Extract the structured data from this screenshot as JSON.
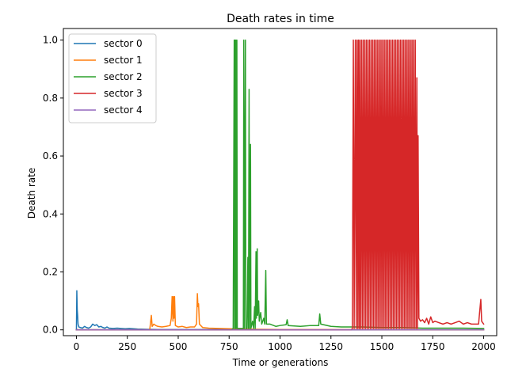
{
  "chart_data": {
    "type": "line",
    "title": "Death rates in time",
    "xlabel": "Time or generations",
    "ylabel": "Death rate",
    "xlim": [
      -64,
      2064
    ],
    "ylim": [
      -0.02,
      1.04
    ],
    "xticks": [
      0,
      250,
      500,
      750,
      1000,
      1250,
      1500,
      1750,
      2000
    ],
    "xtick_labels": [
      "0",
      "250",
      "500",
      "750",
      "1000",
      "1250",
      "1500",
      "1750",
      "2000"
    ],
    "yticks": [
      0.0,
      0.2,
      0.4,
      0.6,
      0.8,
      1.0
    ],
    "ytick_labels": [
      "0.0",
      "0.2",
      "0.4",
      "0.6",
      "0.8",
      "1.0"
    ],
    "grid": false,
    "legend_position": "top-left",
    "series": [
      {
        "name": "sector 0",
        "color": "#1f77b4",
        "points": [
          [
            0,
            0.0
          ],
          [
            2,
            0.135
          ],
          [
            4,
            0.07
          ],
          [
            6,
            0.05
          ],
          [
            8,
            0.02
          ],
          [
            12,
            0.01
          ],
          [
            20,
            0.008
          ],
          [
            30,
            0.006
          ],
          [
            40,
            0.012
          ],
          [
            50,
            0.008
          ],
          [
            60,
            0.006
          ],
          [
            70,
            0.01
          ],
          [
            80,
            0.02
          ],
          [
            90,
            0.015
          ],
          [
            100,
            0.018
          ],
          [
            110,
            0.01
          ],
          [
            120,
            0.012
          ],
          [
            130,
            0.008
          ],
          [
            140,
            0.006
          ],
          [
            150,
            0.01
          ],
          [
            160,
            0.006
          ],
          [
            180,
            0.005
          ],
          [
            200,
            0.006
          ],
          [
            220,
            0.005
          ],
          [
            240,
            0.004
          ],
          [
            260,
            0.005
          ],
          [
            280,
            0.004
          ],
          [
            300,
            0.003
          ],
          [
            350,
            0.002
          ],
          [
            400,
            0.001
          ],
          [
            500,
            0.001
          ],
          [
            700,
            0.001
          ],
          [
            1000,
            0.0
          ],
          [
            2000,
            0.0
          ]
        ]
      },
      {
        "name": "sector 1",
        "color": "#ff7f0e",
        "points": [
          [
            0,
            0.0
          ],
          [
            360,
            0.0
          ],
          [
            368,
            0.05
          ],
          [
            372,
            0.012
          ],
          [
            380,
            0.02
          ],
          [
            390,
            0.015
          ],
          [
            400,
            0.012
          ],
          [
            420,
            0.01
          ],
          [
            440,
            0.012
          ],
          [
            460,
            0.015
          ],
          [
            466,
            0.04
          ],
          [
            470,
            0.115
          ],
          [
            474,
            0.03
          ],
          [
            476,
            0.115
          ],
          [
            479,
            0.04
          ],
          [
            482,
            0.115
          ],
          [
            486,
            0.015
          ],
          [
            500,
            0.01
          ],
          [
            520,
            0.012
          ],
          [
            540,
            0.008
          ],
          [
            560,
            0.01
          ],
          [
            580,
            0.01
          ],
          [
            590,
            0.02
          ],
          [
            594,
            0.125
          ],
          [
            597,
            0.08
          ],
          [
            600,
            0.09
          ],
          [
            604,
            0.02
          ],
          [
            620,
            0.008
          ],
          [
            650,
            0.006
          ],
          [
            700,
            0.005
          ],
          [
            750,
            0.004
          ],
          [
            800,
            0.003
          ],
          [
            900,
            0.002
          ],
          [
            1000,
            0.001
          ],
          [
            1200,
            0.001
          ],
          [
            1600,
            0.0
          ],
          [
            2000,
            0.0
          ]
        ]
      },
      {
        "name": "sector 2",
        "color": "#2ca02c",
        "points": [
          [
            0,
            0.0
          ],
          [
            760,
            0.0
          ],
          [
            770,
            0.005
          ],
          [
            775,
            1.0
          ],
          [
            777,
            0.005
          ],
          [
            779,
            1.0
          ],
          [
            781,
            0.005
          ],
          [
            783,
            1.0
          ],
          [
            785,
            0.005
          ],
          [
            788,
            1.0
          ],
          [
            790,
            0.005
          ],
          [
            800,
            0.005
          ],
          [
            820,
            0.005
          ],
          [
            822,
            1.0
          ],
          [
            824,
            0.005
          ],
          [
            830,
            1.0
          ],
          [
            832,
            0.005
          ],
          [
            838,
            0.005
          ],
          [
            842,
            0.25
          ],
          [
            845,
            0.005
          ],
          [
            848,
            0.83
          ],
          [
            850,
            0.005
          ],
          [
            855,
            0.64
          ],
          [
            857,
            0.005
          ],
          [
            865,
            0.03
          ],
          [
            870,
            0.005
          ],
          [
            875,
            0.08
          ],
          [
            878,
            0.005
          ],
          [
            882,
            0.27
          ],
          [
            884,
            0.04
          ],
          [
            888,
            0.28
          ],
          [
            890,
            0.05
          ],
          [
            895,
            0.1
          ],
          [
            898,
            0.03
          ],
          [
            905,
            0.06
          ],
          [
            910,
            0.02
          ],
          [
            920,
            0.04
          ],
          [
            925,
            0.02
          ],
          [
            930,
            0.205
          ],
          [
            933,
            0.02
          ],
          [
            950,
            0.02
          ],
          [
            980,
            0.012
          ],
          [
            1000,
            0.015
          ],
          [
            1030,
            0.018
          ],
          [
            1035,
            0.035
          ],
          [
            1040,
            0.015
          ],
          [
            1100,
            0.012
          ],
          [
            1150,
            0.015
          ],
          [
            1190,
            0.015
          ],
          [
            1195,
            0.055
          ],
          [
            1200,
            0.02
          ],
          [
            1250,
            0.012
          ],
          [
            1300,
            0.01
          ],
          [
            1400,
            0.01
          ],
          [
            1500,
            0.008
          ],
          [
            1600,
            0.008
          ],
          [
            1700,
            0.006
          ],
          [
            1800,
            0.006
          ],
          [
            1900,
            0.006
          ],
          [
            2000,
            0.005
          ]
        ]
      },
      {
        "name": "sector 3",
        "color": "#d62728",
        "points": [
          [
            0,
            0.0
          ],
          [
            1350,
            0.0
          ],
          [
            1355,
            0.005
          ],
          [
            1360,
            1.0
          ],
          [
            1364,
            0.005
          ],
          [
            1370,
            1.0
          ],
          [
            1374,
            0.005
          ],
          [
            1378,
            1.0
          ],
          [
            1382,
            0.005
          ],
          [
            1385,
            1.0
          ],
          [
            1389,
            0.005
          ],
          [
            1392,
            1.0
          ],
          [
            1396,
            0.005
          ],
          [
            1400,
            1.0
          ],
          [
            1404,
            0.005
          ],
          [
            1408,
            1.0
          ],
          [
            1412,
            0.005
          ],
          [
            1416,
            1.0
          ],
          [
            1420,
            0.005
          ],
          [
            1424,
            1.0
          ],
          [
            1428,
            0.005
          ],
          [
            1432,
            1.0
          ],
          [
            1436,
            0.005
          ],
          [
            1440,
            1.0
          ],
          [
            1444,
            0.005
          ],
          [
            1448,
            1.0
          ],
          [
            1452,
            0.005
          ],
          [
            1456,
            1.0
          ],
          [
            1460,
            0.005
          ],
          [
            1464,
            1.0
          ],
          [
            1468,
            0.005
          ],
          [
            1472,
            1.0
          ],
          [
            1476,
            0.005
          ],
          [
            1480,
            1.0
          ],
          [
            1484,
            0.005
          ],
          [
            1488,
            1.0
          ],
          [
            1492,
            0.005
          ],
          [
            1496,
            1.0
          ],
          [
            1500,
            0.005
          ],
          [
            1504,
            1.0
          ],
          [
            1508,
            0.005
          ],
          [
            1512,
            1.0
          ],
          [
            1516,
            0.005
          ],
          [
            1520,
            1.0
          ],
          [
            1524,
            0.005
          ],
          [
            1528,
            1.0
          ],
          [
            1532,
            0.005
          ],
          [
            1536,
            1.0
          ],
          [
            1540,
            0.005
          ],
          [
            1544,
            1.0
          ],
          [
            1548,
            0.005
          ],
          [
            1552,
            1.0
          ],
          [
            1556,
            0.005
          ],
          [
            1560,
            1.0
          ],
          [
            1564,
            0.005
          ],
          [
            1568,
            1.0
          ],
          [
            1572,
            0.005
          ],
          [
            1576,
            1.0
          ],
          [
            1580,
            0.005
          ],
          [
            1584,
            1.0
          ],
          [
            1588,
            0.005
          ],
          [
            1592,
            1.0
          ],
          [
            1596,
            0.005
          ],
          [
            1600,
            1.0
          ],
          [
            1604,
            0.005
          ],
          [
            1608,
            1.0
          ],
          [
            1612,
            0.005
          ],
          [
            1616,
            1.0
          ],
          [
            1620,
            0.005
          ],
          [
            1624,
            1.0
          ],
          [
            1628,
            0.005
          ],
          [
            1632,
            1.0
          ],
          [
            1636,
            0.005
          ],
          [
            1640,
            1.0
          ],
          [
            1644,
            0.005
          ],
          [
            1648,
            1.0
          ],
          [
            1652,
            0.005
          ],
          [
            1656,
            1.0
          ],
          [
            1660,
            0.005
          ],
          [
            1664,
            1.0
          ],
          [
            1668,
            0.005
          ],
          [
            1672,
            0.87
          ],
          [
            1675,
            0.005
          ],
          [
            1678,
            0.67
          ],
          [
            1682,
            0.04
          ],
          [
            1690,
            0.03
          ],
          [
            1700,
            0.035
          ],
          [
            1710,
            0.025
          ],
          [
            1720,
            0.04
          ],
          [
            1730,
            0.02
          ],
          [
            1740,
            0.045
          ],
          [
            1750,
            0.025
          ],
          [
            1760,
            0.03
          ],
          [
            1780,
            0.025
          ],
          [
            1800,
            0.02
          ],
          [
            1820,
            0.025
          ],
          [
            1840,
            0.02
          ],
          [
            1860,
            0.025
          ],
          [
            1880,
            0.03
          ],
          [
            1900,
            0.02
          ],
          [
            1920,
            0.025
          ],
          [
            1940,
            0.02
          ],
          [
            1960,
            0.02
          ],
          [
            1975,
            0.02
          ],
          [
            1982,
            0.075
          ],
          [
            1986,
            0.105
          ],
          [
            1990,
            0.03
          ],
          [
            1995,
            0.025
          ],
          [
            2000,
            0.02
          ]
        ]
      },
      {
        "name": "sector 4",
        "color": "#9467bd",
        "points": [
          [
            0,
            0.0
          ],
          [
            500,
            0.0
          ],
          [
            1000,
            0.0
          ],
          [
            1500,
            0.0
          ],
          [
            2000,
            0.0
          ]
        ]
      }
    ]
  }
}
